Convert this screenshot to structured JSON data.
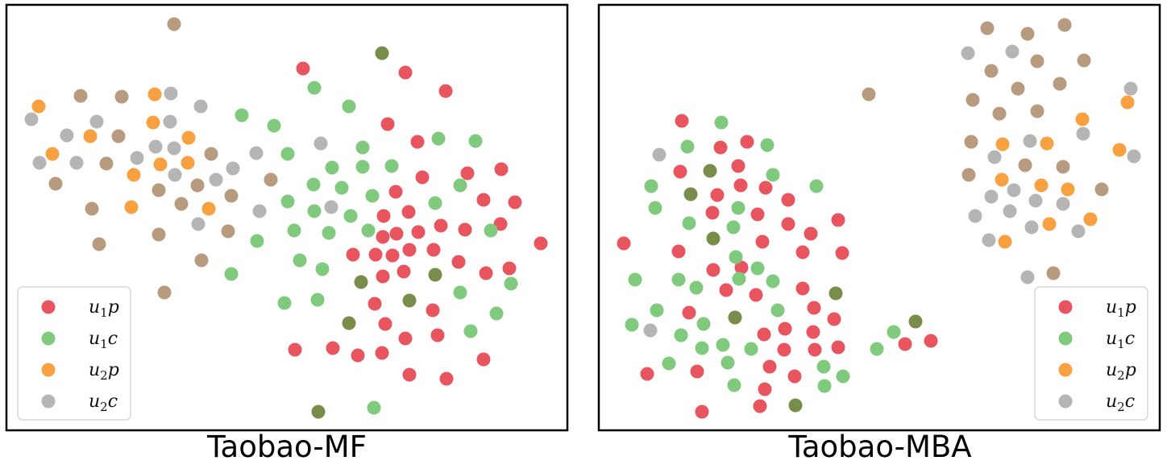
{
  "colors": {
    "u1p": "#e8555e",
    "u1c": "#7fca7c",
    "u2p": "#f9a040",
    "u2c": "#b5b5b5",
    "brown": "#b89a7e",
    "olive": "#788d49"
  },
  "chart_data": [
    {
      "type": "scatter",
      "title": "Taobao-MF",
      "legend": {
        "position": "lower-left",
        "entries": [
          {
            "key": "u1p",
            "main": "u",
            "sub": "1",
            "tail": "p"
          },
          {
            "key": "u1c",
            "main": "u",
            "sub": "1",
            "tail": "c"
          },
          {
            "key": "u2p",
            "main": "u",
            "sub": "2",
            "tail": "p"
          },
          {
            "key": "u2c",
            "main": "u",
            "sub": "2",
            "tail": "c"
          }
        ]
      },
      "series": [
        {
          "key": "u1p",
          "points": [
            [
              376,
              85
            ],
            [
              503,
              90
            ],
            [
              553,
              113
            ],
            [
              481,
              154
            ],
            [
              518,
              176
            ],
            [
              580,
              215
            ],
            [
              622,
              210
            ],
            [
              524,
              220
            ],
            [
              491,
              238
            ],
            [
              600,
              248
            ],
            [
              639,
              251
            ],
            [
              476,
              268
            ],
            [
              507,
              263
            ],
            [
              547,
              280
            ],
            [
              577,
              285
            ],
            [
              621,
              278
            ],
            [
              475,
              294
            ],
            [
              492,
              290
            ],
            [
              519,
              288
            ],
            [
              671,
              302
            ],
            [
              438,
              316
            ],
            [
              466,
              316
            ],
            [
              487,
              317
            ],
            [
              508,
              310
            ],
            [
              538,
              310
            ],
            [
              569,
              325
            ],
            [
              501,
              337
            ],
            [
              475,
              343
            ],
            [
              603,
              339
            ],
            [
              632,
              333
            ],
            [
              465,
              377
            ],
            [
              537,
              385
            ],
            [
              478,
              402
            ],
            [
              366,
              434
            ],
            [
              413,
              432
            ],
            [
              444,
              441
            ],
            [
              474,
              438
            ],
            [
              503,
              420
            ],
            [
              543,
              416
            ],
            [
              600,
              446
            ],
            [
              508,
              465
            ],
            [
              554,
              470
            ]
          ]
        },
        {
          "key": "u1c",
          "points": [
            [
              390,
              109
            ],
            [
              433,
              132
            ],
            [
              300,
              143
            ],
            [
              340,
              156
            ],
            [
              544,
              172
            ],
            [
              590,
              175
            ],
            [
              357,
              191
            ],
            [
              450,
              183
            ],
            [
              412,
              208
            ],
            [
              450,
              207
            ],
            [
              486,
              206
            ],
            [
              389,
              229
            ],
            [
              424,
              233
            ],
            [
              462,
              243
            ],
            [
              571,
              230
            ],
            [
              357,
              250
            ],
            [
              390,
              262
            ],
            [
              435,
              268
            ],
            [
              540,
              252
            ],
            [
              365,
              286
            ],
            [
              408,
              289
            ],
            [
              457,
              286
            ],
            [
              609,
              286
            ],
            [
              319,
              299
            ],
            [
              287,
              340
            ],
            [
              372,
              323
            ],
            [
              400,
              334
            ],
            [
              571,
              363
            ],
            [
              634,
              352
            ],
            [
              353,
              376
            ],
            [
              394,
              372
            ],
            [
              616,
              389
            ],
            [
              584,
              411
            ],
            [
              464,
              506
            ]
          ]
        },
        {
          "key": "u2p",
          "points": [
            [
              48,
              132
            ],
            [
              192,
              117
            ],
            [
              190,
              152
            ],
            [
              112,
              169
            ],
            [
              234,
              171
            ],
            [
              65,
              191
            ],
            [
              199,
              204
            ],
            [
              233,
              202
            ],
            [
              166,
              217
            ],
            [
              163,
              257
            ],
            [
              259,
              259
            ]
          ]
        },
        {
          "key": "u2c",
          "points": [
            [
              39,
              148
            ],
            [
              212,
              116
            ],
            [
              249,
              132
            ],
            [
              211,
              151
            ],
            [
              120,
              151
            ],
            [
              83,
              168
            ],
            [
              170,
              196
            ],
            [
              193,
              182
            ],
            [
              216,
              184
            ],
            [
              49,
              202
            ],
            [
              95,
              202
            ],
            [
              217,
              217
            ],
            [
              268,
              223
            ],
            [
              289,
              209
            ],
            [
              318,
              190
            ],
            [
              398,
              178
            ],
            [
              322,
              262
            ],
            [
              411,
              257
            ],
            [
              246,
              278
            ]
          ]
        },
        {
          "key": "brown",
          "points": [
            [
              216,
              30
            ],
            [
              100,
              119
            ],
            [
              151,
              120
            ],
            [
              147,
              169
            ],
            [
              262,
              191
            ],
            [
              132,
              203
            ],
            [
              69,
              228
            ],
            [
              197,
              236
            ],
            [
              245,
              230
            ],
            [
              287,
              243
            ],
            [
              336,
              223
            ],
            [
              225,
              253
            ],
            [
              114,
              259
            ],
            [
              283,
              287
            ],
            [
              197,
              291
            ],
            [
              123,
              303
            ],
            [
              250,
              323
            ],
            [
              204,
              363
            ]
          ]
        },
        {
          "key": "olive",
          "points": [
            [
              474,
              66
            ],
            [
              540,
              341
            ],
            [
              448,
              350
            ],
            [
              508,
              373
            ],
            [
              433,
              401
            ],
            [
              395,
              511
            ]
          ]
        }
      ]
    },
    {
      "type": "scatter",
      "title": "Taobao-MBA",
      "legend": {
        "position": "lower-right",
        "entries": [
          {
            "key": "u1p",
            "main": "u",
            "sub": "1",
            "tail": "p"
          },
          {
            "key": "u1c",
            "main": "u",
            "sub": "1",
            "tail": "c"
          },
          {
            "key": "u2p",
            "main": "u",
            "sub": "2",
            "tail": "p"
          },
          {
            "key": "u2c",
            "main": "u",
            "sub": "2",
            "tail": "c"
          }
        ]
      },
      "series": [
        {
          "key": "u1p",
          "points": [
            [
              846,
              150
            ],
            [
              894,
              183
            ],
            [
              927,
              176
            ],
            [
              916,
              206
            ],
            [
              844,
              213
            ],
            [
              890,
              242
            ],
            [
              919,
              230
            ],
            [
              950,
              233
            ],
            [
              978,
              248
            ],
            [
              884,
              264
            ],
            [
              940,
              266
            ],
            [
              978,
              278
            ],
            [
              1040,
              273
            ],
            [
              1006,
              290
            ],
            [
              946,
              300
            ],
            [
              774,
              302
            ],
            [
              842,
              312
            ],
            [
              996,
              313
            ],
            [
              1045,
              314
            ],
            [
              885,
              335
            ],
            [
              920,
              332
            ],
            [
              901,
              360
            ],
            [
              938,
              366
            ],
            [
              996,
              358
            ],
            [
              855,
              388
            ],
            [
              1010,
              382
            ],
            [
              1035,
              396
            ],
            [
              974,
              408
            ],
            [
              948,
              415
            ],
            [
              1009,
              412
            ],
            [
              973,
              434
            ],
            [
              1011,
              434
            ],
            [
              1040,
              431
            ],
            [
              803,
              464
            ],
            [
              865,
              461
            ],
            [
              955,
              455
            ],
            [
              986,
              467
            ],
            [
              949,
              483
            ],
            [
              943,
              504
            ],
            [
              871,
              511
            ],
            [
              1123,
              427
            ],
            [
              1155,
              423
            ]
          ]
        },
        {
          "key": "u1c",
          "points": [
            [
              895,
              152
            ],
            [
              853,
              182
            ],
            [
              952,
              180
            ],
            [
              959,
              217
            ],
            [
              808,
              231
            ],
            [
              1013,
              231
            ],
            [
              813,
              258
            ],
            [
              916,
              258
            ],
            [
              855,
              277
            ],
            [
              910,
              282
            ],
            [
              913,
              319
            ],
            [
              940,
              333
            ],
            [
              788,
              347
            ],
            [
              842,
              347
            ],
            [
              864,
              357
            ],
            [
              917,
              346
            ],
            [
              959,
              349
            ],
            [
              965,
              385
            ],
            [
              815,
              385
            ],
            [
              784,
              403
            ],
            [
              873,
              402
            ],
            [
              845,
              416
            ],
            [
              897,
              428
            ],
            [
              932,
              433
            ],
            [
              871,
              432
            ],
            [
              830,
              451
            ],
            [
              903,
              450
            ],
            [
              1022,
              455
            ],
            [
              1046,
              467
            ],
            [
              911,
              478
            ],
            [
              1023,
              479
            ],
            [
              1088,
              433
            ],
            [
              1109,
              412
            ]
          ]
        },
        {
          "key": "u2p",
          "points": [
            [
              1399,
              127
            ],
            [
              1343,
              148
            ],
            [
              1244,
              179
            ],
            [
              1299,
              178
            ],
            [
              1389,
              186
            ],
            [
              1243,
              223
            ],
            [
              1292,
              230
            ],
            [
              1325,
              235
            ],
            [
              1302,
              278
            ],
            [
              1353,
              272
            ],
            [
              1247,
              300
            ]
          ]
        },
        {
          "key": "u2c",
          "points": [
            [
              1201,
              66
            ],
            [
              1256,
              64
            ],
            [
              1403,
              110
            ],
            [
              1344,
              166
            ],
            [
              1278,
              175
            ],
            [
              1234,
              195
            ],
            [
              1407,
              194
            ],
            [
              1230,
              244
            ],
            [
              1258,
              236
            ],
            [
              1285,
              249
            ],
            [
              1319,
              253
            ],
            [
              1210,
              268
            ],
            [
              1253,
              262
            ],
            [
              1280,
              282
            ],
            [
              1338,
              287
            ],
            [
              1227,
              298
            ],
            [
              1275,
              344
            ],
            [
              818,
              192
            ],
            [
              807,
              410
            ]
          ]
        },
        {
          "key": "brown",
          "points": [
            [
              1225,
              35
            ],
            [
              1321,
              31
            ],
            [
              1275,
              42
            ],
            [
              1287,
              76
            ],
            [
              1345,
              75
            ],
            [
              1230,
              88
            ],
            [
              1263,
              110
            ],
            [
              1315,
              104
            ],
            [
              1078,
              117
            ],
            [
              1207,
              124
            ],
            [
              1240,
              141
            ],
            [
              1287,
              138
            ],
            [
              1205,
              176
            ],
            [
              1272,
              205
            ],
            [
              1319,
              207
            ],
            [
              1202,
              217
            ],
            [
              1367,
              235
            ],
            [
              1307,
              339
            ]
          ]
        },
        {
          "key": "olive",
          "points": [
            [
              881,
              212
            ],
            [
              857,
              241
            ],
            [
              885,
              296
            ],
            [
              1037,
              364
            ],
            [
              912,
              394
            ],
            [
              1136,
              399
            ],
            [
              987,
              503
            ]
          ]
        }
      ]
    }
  ]
}
